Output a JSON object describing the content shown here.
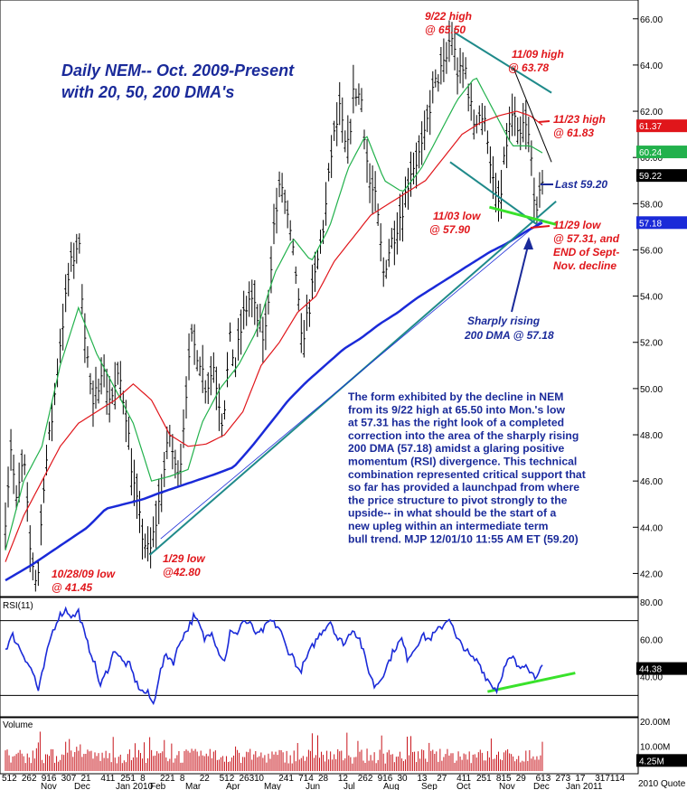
{
  "chart_data": {
    "type": "bar",
    "title": "Daily NEM-- Oct. 2009-Present",
    "subtitle": "with 20, 50, 200 DMA's",
    "price_axis": {
      "ylim": [
        41,
        66.5
      ],
      "ticks": [
        "42.00",
        "44.00",
        "46.00",
        "48.00",
        "50.00",
        "52.00",
        "54.00",
        "56.00",
        "58.00",
        "60.00",
        "62.00",
        "64.00",
        "66.00"
      ],
      "tick_values": [
        42,
        44,
        46,
        48,
        50,
        52,
        54,
        56,
        58,
        60,
        62,
        64,
        66
      ]
    },
    "rsi_axis": {
      "ylim": [
        20,
        80
      ],
      "ticks": [
        "80.00",
        "60.00",
        "40.00"
      ],
      "tick_values": [
        80,
        60,
        40
      ],
      "bands": [
        70,
        30
      ],
      "label": "RSI(11)"
    },
    "volume_axis": {
      "ticks": [
        "20.00M",
        "10.00M"
      ],
      "tick_values": [
        20,
        10
      ],
      "vmax": 20,
      "label": "Volume"
    },
    "x_tick_labels": [
      "512",
      "262",
      "916",
      "307",
      "21",
      "411",
      "251",
      "8",
      "221",
      "8",
      "22",
      "512",
      "2631",
      "0",
      "241",
      "714",
      "28",
      "12",
      "262",
      "916",
      "30",
      "13",
      "27",
      "411",
      "251",
      "815",
      "29",
      "613",
      "273",
      "17",
      "3171",
      "14"
    ],
    "month_labels": [
      "Nov",
      "Dec",
      "Jan 2010",
      "Feb",
      "Mar",
      "Apr",
      "May",
      "Jun",
      "Jul",
      "Aug",
      "Sep",
      "Oct",
      "Nov",
      "Dec",
      "Jan 2011"
    ],
    "copyright": "2010 Quote LLC",
    "price_series": {
      "name": "NEM",
      "close_keypoints": [
        [
          0,
          44.5
        ],
        [
          6,
          47.5
        ],
        [
          12,
          45
        ],
        [
          20,
          47
        ],
        [
          27,
          43
        ],
        [
          35,
          41.45
        ],
        [
          42,
          46
        ],
        [
          52,
          49
        ],
        [
          60,
          52
        ],
        [
          70,
          55
        ],
        [
          80,
          56.5
        ],
        [
          88,
          52
        ],
        [
          96,
          49
        ],
        [
          105,
          51
        ],
        [
          115,
          49.5
        ],
        [
          125,
          50.5
        ],
        [
          132,
          49
        ],
        [
          140,
          46
        ],
        [
          148,
          44
        ],
        [
          155,
          43
        ],
        [
          158,
          42.8
        ],
        [
          164,
          44
        ],
        [
          172,
          46
        ],
        [
          180,
          48
        ],
        [
          186,
          46.5
        ],
        [
          192,
          47
        ],
        [
          198,
          50
        ],
        [
          204,
          52
        ],
        [
          212,
          51.5
        ],
        [
          220,
          50
        ],
        [
          228,
          51
        ],
        [
          238,
          48.5
        ],
        [
          246,
          52
        ],
        [
          252,
          51
        ],
        [
          260,
          53
        ],
        [
          268,
          54
        ],
        [
          276,
          53
        ],
        [
          284,
          52
        ],
        [
          294,
          57
        ],
        [
          302,
          59
        ],
        [
          310,
          57
        ],
        [
          318,
          55
        ],
        [
          324,
          52
        ],
        [
          330,
          53
        ],
        [
          340,
          55
        ],
        [
          350,
          57.5
        ],
        [
          358,
          60.5
        ],
        [
          366,
          62
        ],
        [
          374,
          60
        ],
        [
          382,
          63
        ],
        [
          390,
          62.5
        ],
        [
          398,
          59
        ],
        [
          406,
          58
        ],
        [
          414,
          55
        ],
        [
          420,
          56
        ],
        [
          428,
          57
        ],
        [
          436,
          58
        ],
        [
          444,
          59.5
        ],
        [
          452,
          60
        ],
        [
          458,
          60.5
        ],
        [
          466,
          62.5
        ],
        [
          474,
          63.5
        ],
        [
          482,
          64
        ],
        [
          488,
          65.5
        ],
        [
          496,
          63.5
        ],
        [
          504,
          63.8
        ],
        [
          512,
          61.5
        ],
        [
          520,
          62
        ],
        [
          528,
          61
        ],
        [
          536,
          58.2
        ],
        [
          542,
          57.9
        ],
        [
          548,
          60.5
        ],
        [
          556,
          62
        ],
        [
          562,
          60.5
        ],
        [
          568,
          61.5
        ],
        [
          574,
          60.7
        ],
        [
          578,
          59
        ],
        [
          582,
          57.3
        ],
        [
          586,
          58.5
        ],
        [
          588,
          59.2
        ]
      ],
      "last": 59.22
    },
    "sma": [
      {
        "name": "20 DMA",
        "color": "#22b14c",
        "last": 60.24,
        "keypoints": [
          [
            0,
            43
          ],
          [
            20,
            46
          ],
          [
            40,
            47.5
          ],
          [
            60,
            51
          ],
          [
            80,
            53.5
          ],
          [
            100,
            51.5
          ],
          [
            120,
            50
          ],
          [
            140,
            48.5
          ],
          [
            160,
            46
          ],
          [
            180,
            46.2
          ],
          [
            200,
            46.5
          ],
          [
            215,
            48.5
          ],
          [
            235,
            50
          ],
          [
            255,
            51
          ],
          [
            275,
            52.5
          ],
          [
            295,
            55
          ],
          [
            315,
            56.5
          ],
          [
            335,
            55.5
          ],
          [
            355,
            57
          ],
          [
            375,
            59.5
          ],
          [
            395,
            61
          ],
          [
            415,
            59
          ],
          [
            435,
            58.5
          ],
          [
            455,
            59.5
          ],
          [
            475,
            61
          ],
          [
            495,
            62.5
          ],
          [
            515,
            63.5
          ],
          [
            535,
            62
          ],
          [
            555,
            60.5
          ],
          [
            575,
            60.5
          ],
          [
            588,
            60.2
          ]
        ]
      },
      {
        "name": "50 DMA",
        "color": "#e0161b",
        "last": 61.37,
        "keypoints": [
          [
            0,
            42.5
          ],
          [
            20,
            44.5
          ],
          [
            40,
            46
          ],
          [
            60,
            47.5
          ],
          [
            80,
            48.5
          ],
          [
            100,
            49
          ],
          [
            120,
            49.5
          ],
          [
            140,
            50.2
          ],
          [
            160,
            49.5
          ],
          [
            180,
            48
          ],
          [
            200,
            47.5
          ],
          [
            220,
            47.6
          ],
          [
            240,
            48
          ],
          [
            260,
            49
          ],
          [
            280,
            51
          ],
          [
            300,
            52
          ],
          [
            320,
            53.3
          ],
          [
            340,
            54
          ],
          [
            360,
            55.5
          ],
          [
            380,
            56.5
          ],
          [
            400,
            57.5
          ],
          [
            420,
            58
          ],
          [
            440,
            58.5
          ],
          [
            460,
            59
          ],
          [
            480,
            60
          ],
          [
            500,
            61
          ],
          [
            520,
            61.5
          ],
          [
            540,
            61.8
          ],
          [
            560,
            62
          ],
          [
            575,
            61.8
          ],
          [
            588,
            61.4
          ]
        ]
      },
      {
        "name": "200 DMA",
        "color": "#1a2ad8",
        "last": 57.18,
        "keypoints": [
          [
            0,
            41.7
          ],
          [
            30,
            42.4
          ],
          [
            60,
            43.2
          ],
          [
            90,
            44
          ],
          [
            110,
            44.8
          ],
          [
            130,
            45
          ],
          [
            150,
            45.2
          ],
          [
            170,
            45.5
          ],
          [
            200,
            45.9
          ],
          [
            230,
            46.3
          ],
          [
            250,
            46.6
          ],
          [
            270,
            47.5
          ],
          [
            290,
            48.5
          ],
          [
            310,
            49.5
          ],
          [
            330,
            50.3
          ],
          [
            350,
            51
          ],
          [
            370,
            51.7
          ],
          [
            390,
            52.2
          ],
          [
            410,
            52.8
          ],
          [
            430,
            53.3
          ],
          [
            450,
            53.9
          ],
          [
            470,
            54.4
          ],
          [
            490,
            54.9
          ],
          [
            510,
            55.4
          ],
          [
            530,
            55.9
          ],
          [
            550,
            56.3
          ],
          [
            570,
            56.8
          ],
          [
            588,
            57.18
          ]
        ]
      }
    ],
    "rsi_series": {
      "name": "RSI(11)",
      "last": 44.38,
      "keypoints": [
        [
          0,
          55
        ],
        [
          8,
          62
        ],
        [
          16,
          55
        ],
        [
          24,
          48
        ],
        [
          32,
          40
        ],
        [
          36,
          32
        ],
        [
          42,
          45
        ],
        [
          50,
          62
        ],
        [
          58,
          72
        ],
        [
          66,
          76
        ],
        [
          74,
          72
        ],
        [
          80,
          75
        ],
        [
          88,
          60
        ],
        [
          96,
          50
        ],
        [
          104,
          35
        ],
        [
          112,
          44
        ],
        [
          120,
          55
        ],
        [
          128,
          48
        ],
        [
          136,
          46
        ],
        [
          144,
          36
        ],
        [
          150,
          32
        ],
        [
          156,
          31
        ],
        [
          162,
          25
        ],
        [
          168,
          40
        ],
        [
          176,
          52
        ],
        [
          184,
          48
        ],
        [
          192,
          60
        ],
        [
          200,
          66
        ],
        [
          206,
          72
        ],
        [
          212,
          68
        ],
        [
          218,
          60
        ],
        [
          226,
          65
        ],
        [
          232,
          55
        ],
        [
          240,
          48
        ],
        [
          246,
          64
        ],
        [
          252,
          62
        ],
        [
          260,
          70
        ],
        [
          268,
          68
        ],
        [
          276,
          62
        ],
        [
          284,
          66
        ],
        [
          290,
          70
        ],
        [
          300,
          66
        ],
        [
          308,
          55
        ],
        [
          316,
          50
        ],
        [
          322,
          42
        ],
        [
          328,
          48
        ],
        [
          336,
          56
        ],
        [
          346,
          64
        ],
        [
          356,
          70
        ],
        [
          364,
          60
        ],
        [
          372,
          58
        ],
        [
          380,
          66
        ],
        [
          388,
          60
        ],
        [
          396,
          46
        ],
        [
          404,
          35
        ],
        [
          410,
          38
        ],
        [
          418,
          46
        ],
        [
          426,
          55
        ],
        [
          434,
          60
        ],
        [
          440,
          50
        ],
        [
          448,
          55
        ],
        [
          456,
          62
        ],
        [
          464,
          60
        ],
        [
          472,
          64
        ],
        [
          480,
          68
        ],
        [
          486,
          72
        ],
        [
          494,
          60
        ],
        [
          502,
          56
        ],
        [
          510,
          50
        ],
        [
          518,
          48
        ],
        [
          526,
          40
        ],
        [
          532,
          36
        ],
        [
          538,
          33
        ],
        [
          544,
          42
        ],
        [
          550,
          48
        ],
        [
          556,
          50
        ],
        [
          562,
          44
        ],
        [
          570,
          48
        ],
        [
          576,
          42
        ],
        [
          580,
          40
        ],
        [
          584,
          44
        ],
        [
          588,
          44.38
        ]
      ]
    },
    "volume": {
      "last": "4.25M",
      "last_value": 4.25
    },
    "trendlines": [
      {
        "name": "support",
        "from": [
          158,
          42.8
        ],
        "to": [
          603,
          58.1
        ]
      },
      {
        "name": "upper-channel",
        "from": [
          492,
          65.4
        ],
        "to": [
          598,
          62.8
        ]
      },
      {
        "name": "lower-channel",
        "from": [
          487,
          59.8
        ],
        "to": [
          582,
          57.1
        ]
      },
      {
        "name": "short-resistance",
        "from": [
          556,
          63.9
        ],
        "to": [
          598,
          59.8
        ]
      },
      {
        "name": "rsi-divergence",
        "from": [
          528,
          32
        ],
        "to": [
          624,
          42
        ]
      }
    ],
    "annotations": [
      {
        "text": [
          "9/22 high",
          "@ 65.50"
        ],
        "color": "red"
      },
      {
        "text": [
          "11/09 high",
          "@ 63.78"
        ],
        "color": "red"
      },
      {
        "text": [
          "11/23 high",
          "@ 61.83"
        ],
        "color": "red"
      },
      {
        "text": [
          "Last 59.20"
        ],
        "color": "blue"
      },
      {
        "text": [
          "11/03 low",
          "@ 57.90"
        ],
        "color": "red"
      },
      {
        "text": [
          "11/29 low",
          "@ 57.31, and",
          "END of Sept-",
          "Nov. decline"
        ],
        "color": "red"
      },
      {
        "text": [
          "Sharply rising",
          "200 DMA @ 57.18"
        ],
        "color": "blue"
      },
      {
        "text": [
          "1/29 low",
          "@42.80"
        ],
        "color": "red"
      },
      {
        "text": [
          "10/28/09 low",
          "@ 41.45"
        ],
        "color": "red"
      }
    ],
    "commentary": [
      "The form exhibited by the decline in NEM",
      "from its 9/22 high at 65.50 into Mon.'s low",
      "at 57.31 has the right look of a completed",
      "correction into the area of the sharply rising",
      "200 DMA (57.18) amidst a glaring positive",
      "momentum (RSI) divergence. This technical",
      "combination represented critical support that",
      "so far has provided a launchpad from where",
      "the price structure to pivot strongly to the",
      "upside-- in what should be the start of a",
      "new upleg within an intermediate term",
      "bull trend. MJP 12/01/10 11:55 AM ET  (59.20)"
    ],
    "tags": [
      {
        "label": "61.37",
        "bg": "#e0161b",
        "fg": "#ffffff"
      },
      {
        "label": "60.24",
        "bg": "#22b14c",
        "fg": "#ffffff"
      },
      {
        "label": "59.22",
        "bg": "#000000",
        "fg": "#ffffff"
      },
      {
        "label": "57.18",
        "bg": "#1a2ad8",
        "fg": "#ffffff"
      }
    ]
  }
}
